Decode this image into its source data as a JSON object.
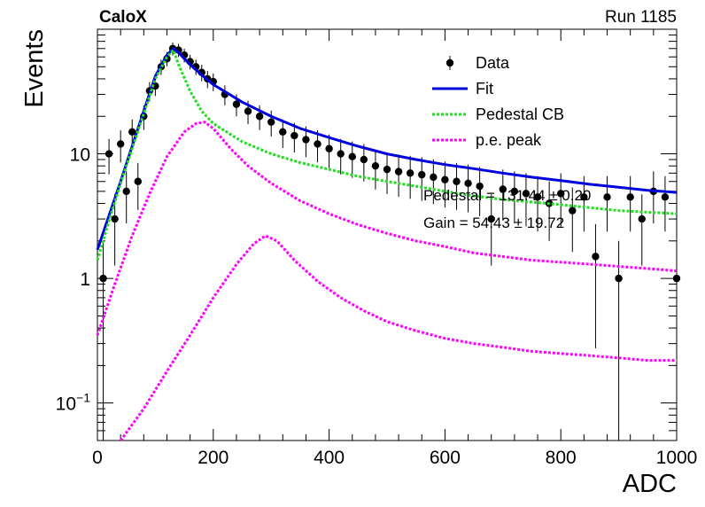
{
  "chart_data": {
    "type": "scatter",
    "title_left": "CaloX",
    "title_right": "Run 1185",
    "xlabel": "ADC",
    "ylabel": "Events",
    "xlim": [
      0,
      1000
    ],
    "ylim": [
      0.05,
      100
    ],
    "yscale": "log",
    "grid": false,
    "legend_position": "top-right",
    "x_ticks": [
      {
        "value": 0,
        "label": "0"
      },
      {
        "value": 200,
        "label": "200"
      },
      {
        "value": 400,
        "label": "400"
      },
      {
        "value": 600,
        "label": "600"
      },
      {
        "value": 800,
        "label": "800"
      },
      {
        "value": 1000,
        "label": "1000"
      }
    ],
    "y_ticks": [
      {
        "value": 0.1,
        "base": "10",
        "exp": "−1"
      },
      {
        "value": 1,
        "base": "1",
        "exp": ""
      },
      {
        "value": 10,
        "base": "10",
        "exp": ""
      }
    ],
    "stats": [
      {
        "label": "Pedestal = 131.44 ± 0.20"
      },
      {
        "label": "Gain = 54.43 ± 19.72"
      }
    ],
    "series": [
      {
        "name": "Data",
        "kind": "points",
        "color": "#000000",
        "x": [
          10,
          20,
          30,
          40,
          50,
          60,
          70,
          80,
          90,
          100,
          110,
          120,
          130,
          140,
          150,
          160,
          170,
          180,
          190,
          200,
          220,
          240,
          260,
          280,
          300,
          320,
          340,
          360,
          380,
          400,
          420,
          440,
          460,
          480,
          500,
          520,
          540,
          560,
          580,
          600,
          620,
          640,
          660,
          680,
          700,
          720,
          740,
          760,
          780,
          800,
          820,
          840,
          860,
          880,
          900,
          920,
          940,
          960,
          980,
          1000
        ],
        "y": [
          1.0,
          10.0,
          3.0,
          12.0,
          5.0,
          15.0,
          6.0,
          20.0,
          32.0,
          35.0,
          50.0,
          58.0,
          70.0,
          68.0,
          62.0,
          55.0,
          50.0,
          45.0,
          40.0,
          38.0,
          30.0,
          25.0,
          22.0,
          20.0,
          18.0,
          15.0,
          14.0,
          13.0,
          12.0,
          11.0,
          10.0,
          9.5,
          9.0,
          8.0,
          7.5,
          7.2,
          7.0,
          6.8,
          6.5,
          6.2,
          6.0,
          5.8,
          5.5,
          3.0,
          5.2,
          5.0,
          4.8,
          4.5,
          4.0,
          4.8,
          3.5,
          4.5,
          1.5,
          4.5,
          1.0,
          4.5,
          3.0,
          5.0,
          4.5,
          1.0
        ]
      },
      {
        "name": "Fit",
        "kind": "line",
        "color": "#0000dd",
        "x": [
          0,
          20,
          40,
          60,
          80,
          100,
          120,
          131,
          140,
          160,
          180,
          200,
          250,
          300,
          350,
          400,
          450,
          500,
          550,
          600,
          650,
          700,
          750,
          800,
          850,
          900,
          950,
          1000
        ],
        "y": [
          1.7,
          3.2,
          6.0,
          11.5,
          22.0,
          42.0,
          62.0,
          70.0,
          65.0,
          52.0,
          43.0,
          36.0,
          26.0,
          20.0,
          16.0,
          13.5,
          11.5,
          10.0,
          9.0,
          8.2,
          7.6,
          7.0,
          6.5,
          6.1,
          5.7,
          5.4,
          5.1,
          4.9
        ]
      },
      {
        "name": "Pedestal CB",
        "kind": "dotted",
        "color": "#22dd22",
        "x": [
          0,
          20,
          40,
          60,
          80,
          100,
          120,
          131,
          140,
          160,
          180,
          200,
          250,
          300,
          350,
          400,
          450,
          500,
          550,
          600,
          650,
          700,
          750,
          800,
          850,
          900,
          950,
          1000
        ],
        "y": [
          1.4,
          2.9,
          5.8,
          11.0,
          21.0,
          40.0,
          60.0,
          68.0,
          52.0,
          32.0,
          22.0,
          17.5,
          12.5,
          10.0,
          8.5,
          7.5,
          6.6,
          6.0,
          5.5,
          5.0,
          4.6,
          4.3,
          4.1,
          3.9,
          3.7,
          3.5,
          3.4,
          3.3
        ]
      },
      {
        "name": "p.e. peak",
        "kind": "dotted",
        "color": "#ff00ff",
        "x": [
          0,
          30,
          60,
          90,
          120,
          150,
          170,
          185,
          200,
          230,
          260,
          300,
          350,
          400,
          450,
          500,
          550,
          600,
          650,
          700,
          750,
          800,
          850,
          900,
          950,
          1000
        ],
        "y": [
          0.35,
          0.9,
          2.2,
          4.8,
          9.5,
          15.0,
          17.5,
          18.0,
          16.0,
          11.0,
          8.0,
          5.8,
          4.2,
          3.3,
          2.7,
          2.3,
          2.0,
          1.8,
          1.6,
          1.5,
          1.4,
          1.35,
          1.3,
          1.25,
          1.2,
          1.15
        ]
      },
      {
        "name": "",
        "kind": "dotted",
        "color": "#ff00ff",
        "x": [
          40,
          80,
          120,
          160,
          200,
          240,
          270,
          290,
          310,
          340,
          380,
          420,
          460,
          500,
          550,
          600,
          650,
          700,
          750,
          800,
          850,
          900,
          950,
          1000
        ],
        "y": [
          0.045,
          0.09,
          0.18,
          0.35,
          0.7,
          1.3,
          1.9,
          2.2,
          2.0,
          1.4,
          0.95,
          0.7,
          0.55,
          0.45,
          0.38,
          0.33,
          0.3,
          0.28,
          0.26,
          0.25,
          0.24,
          0.23,
          0.22,
          0.22
        ]
      }
    ]
  }
}
